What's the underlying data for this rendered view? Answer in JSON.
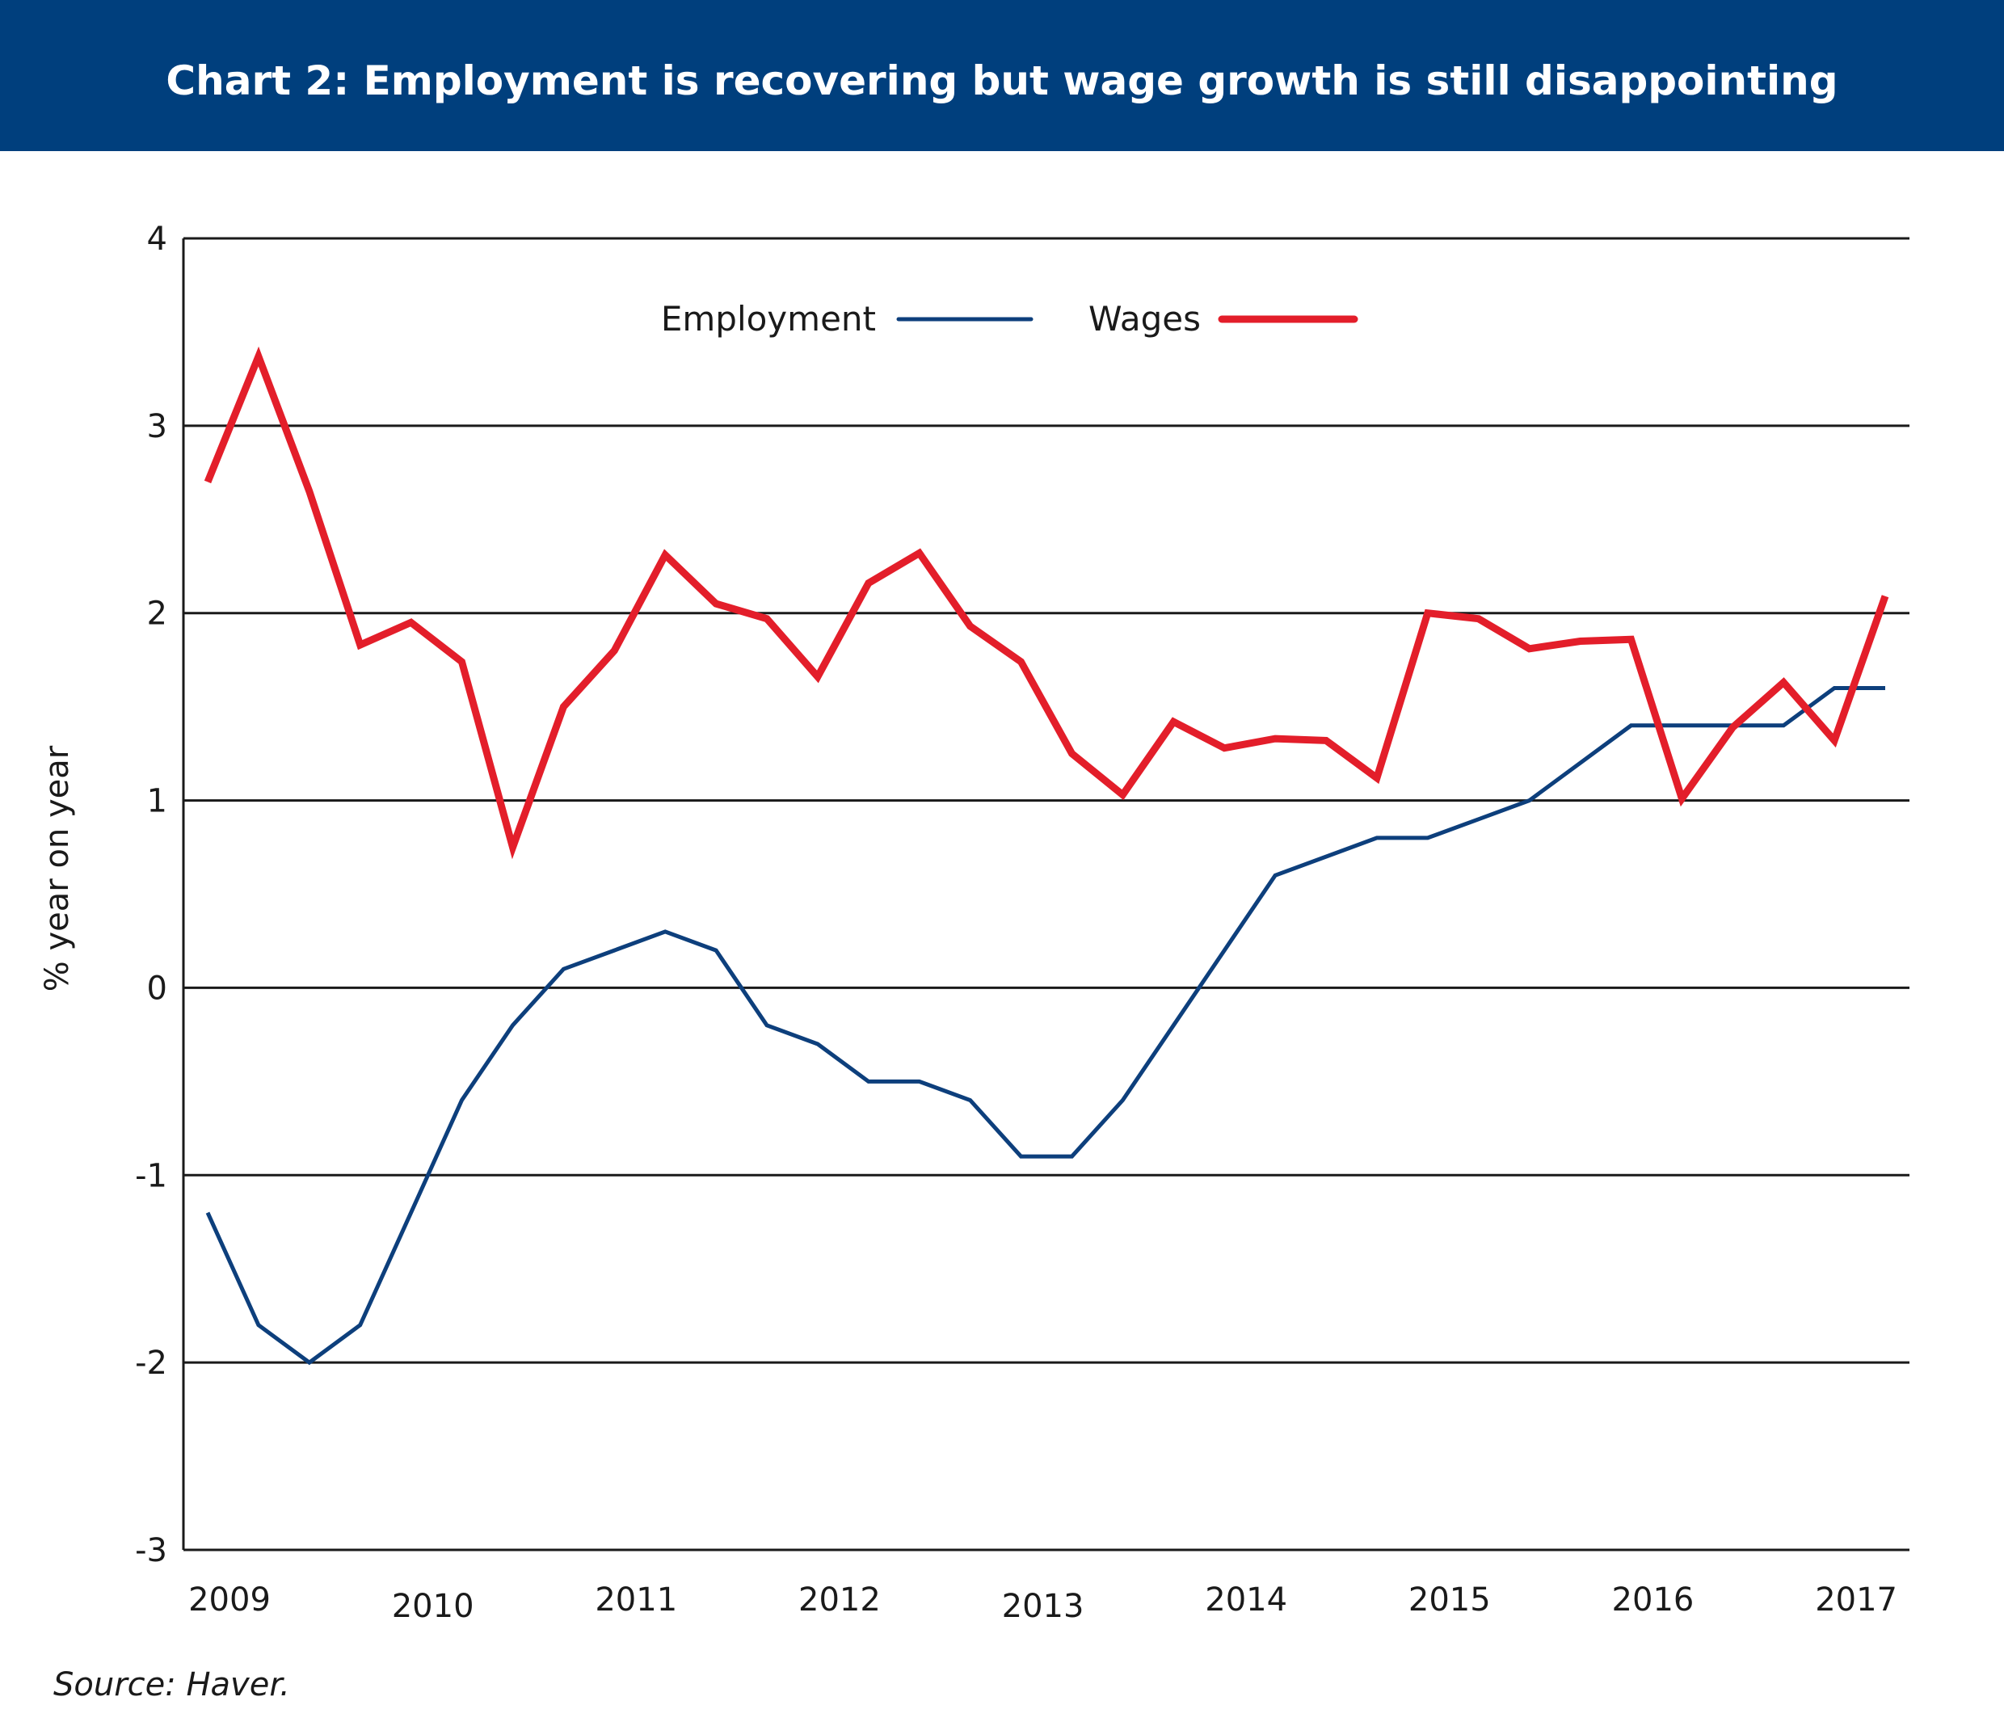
{
  "chart_data": {
    "type": "line",
    "title": "Chart 2: Employment is recovering but wage growth is still disappointing",
    "ylabel": "% year on year",
    "xlabel": "",
    "ylim": [
      -3,
      4
    ],
    "yticks": [
      "4",
      "3",
      "2",
      "1",
      "0",
      "-1",
      "-2",
      "-3"
    ],
    "ytick_values": [
      4,
      3,
      2,
      1,
      0,
      -1,
      -2,
      -3
    ],
    "xtick_labels": [
      "2009",
      "2010",
      "2011",
      "2012",
      "2013",
      "2014",
      "2015",
      "2016",
      "2017"
    ],
    "xtick_positions": [
      2009.0,
      2010.0,
      2011.0,
      2012.0,
      2013.0,
      2014.0,
      2015.0,
      2016.0,
      2017.0
    ],
    "grid": "horizontal",
    "legend": "top-center",
    "x": [
      2009.0,
      2009.25,
      2009.5,
      2009.75,
      2010.0,
      2010.25,
      2010.5,
      2010.75,
      2011.0,
      2011.25,
      2011.5,
      2011.75,
      2012.0,
      2012.25,
      2012.5,
      2012.75,
      2013.0,
      2013.25,
      2013.5,
      2013.75,
      2014.0,
      2014.25,
      2014.5,
      2014.75,
      2015.0,
      2015.25,
      2015.5,
      2015.75,
      2016.0,
      2016.25,
      2016.5,
      2016.75,
      2017.0,
      2017.25
    ],
    "series": [
      {
        "name": "Employment",
        "color": "#0d3f7c",
        "values": [
          -1.2,
          -1.8,
          -2.0,
          -1.8,
          -1.2,
          -0.6,
          -0.2,
          0.1,
          0.2,
          0.3,
          0.2,
          -0.2,
          -0.3,
          -0.5,
          -0.5,
          -0.6,
          -0.9,
          -0.9,
          -0.6,
          -0.2,
          0.2,
          0.6,
          0.7,
          0.8,
          0.8,
          0.9,
          1.0,
          1.2,
          1.4,
          1.4,
          1.4,
          1.4,
          1.6,
          1.6
        ]
      },
      {
        "name": "Wages",
        "color": "#e31e2a",
        "values": [
          2.7,
          3.37,
          2.65,
          1.83,
          1.95,
          1.74,
          0.75,
          1.5,
          1.8,
          2.31,
          2.05,
          1.97,
          1.66,
          2.16,
          2.32,
          1.93,
          1.74,
          1.25,
          1.03,
          1.42,
          1.28,
          1.33,
          1.32,
          1.12,
          2.0,
          1.97,
          1.81,
          1.85,
          1.86,
          1.01,
          1.39,
          1.63,
          1.32,
          2.09
        ]
      }
    ]
  },
  "source": "Source: Haver."
}
